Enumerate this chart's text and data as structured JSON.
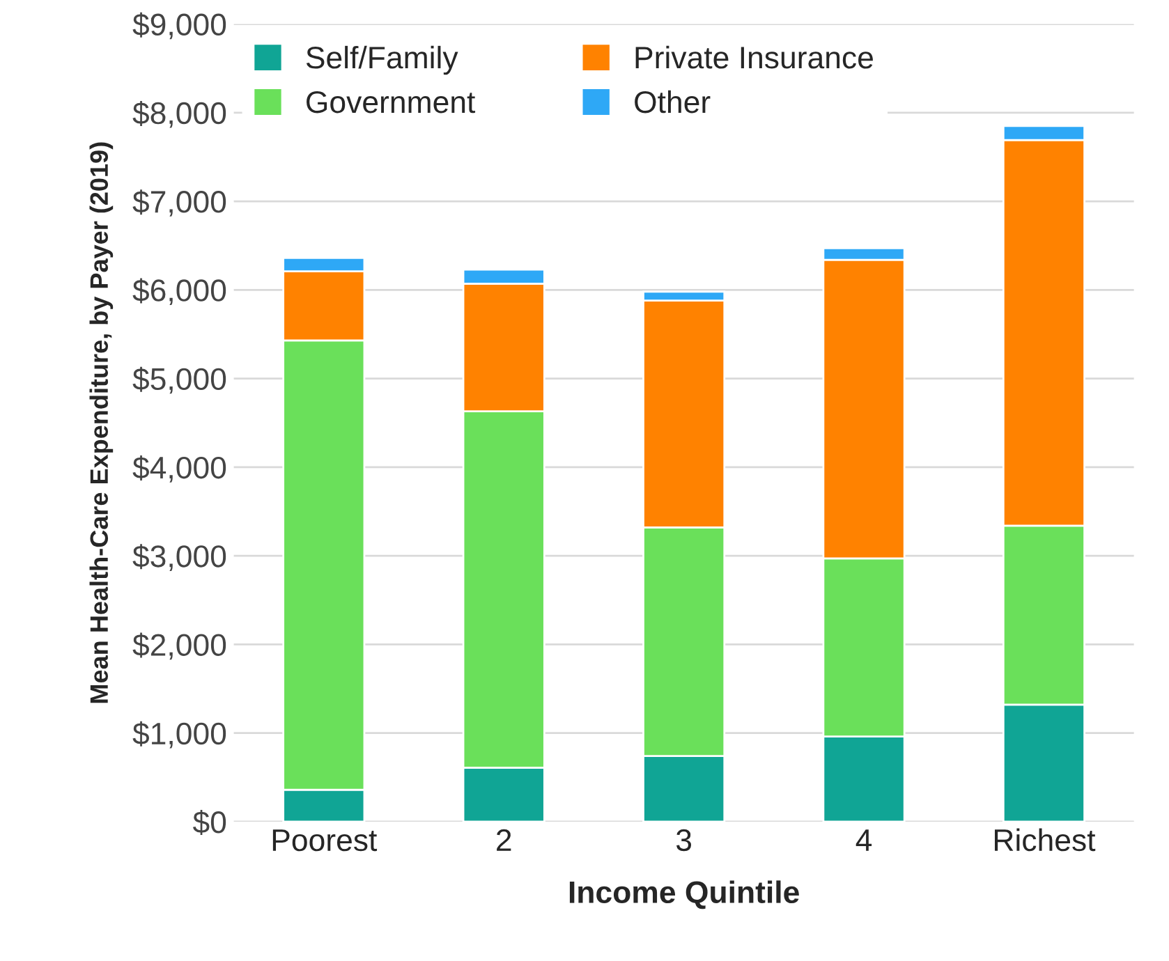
{
  "chart_data": {
    "type": "bar",
    "stacked": true,
    "xlabel": "Income Quintile",
    "ylabel": "Mean Health-Care Expenditure, by Payer (2019)",
    "categories": [
      "Poorest",
      "2",
      "3",
      "4",
      "Richest"
    ],
    "series": [
      {
        "name": "Self/Family",
        "color": "#10a595",
        "values": [
          360,
          610,
          740,
          960,
          1320
        ]
      },
      {
        "name": "Government",
        "color": "#6ae05a",
        "values": [
          5070,
          4020,
          2580,
          2010,
          2020
        ]
      },
      {
        "name": "Private Insurance",
        "color": "#ff8200",
        "values": [
          780,
          1440,
          2560,
          3370,
          4350
        ]
      },
      {
        "name": "Other",
        "color": "#2ea8f6",
        "values": [
          150,
          160,
          100,
          130,
          160
        ]
      }
    ],
    "ylim": [
      0,
      9000
    ],
    "yticks": [
      {
        "value": 0,
        "label": "$0"
      },
      {
        "value": 1000,
        "label": "$1,000"
      },
      {
        "value": 2000,
        "label": "$2,000"
      },
      {
        "value": 3000,
        "label": "$3,000"
      },
      {
        "value": 4000,
        "label": "$4,000"
      },
      {
        "value": 5000,
        "label": "$5,000"
      },
      {
        "value": 6000,
        "label": "$6,000"
      },
      {
        "value": 7000,
        "label": "$7,000"
      },
      {
        "value": 8000,
        "label": "$8,000"
      },
      {
        "value": 9000,
        "label": "$9,000"
      }
    ],
    "grid": "y",
    "legend": "top left"
  }
}
